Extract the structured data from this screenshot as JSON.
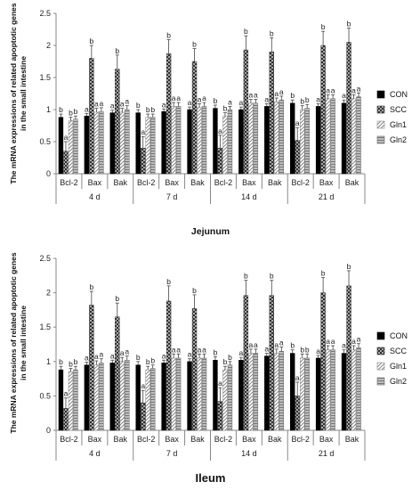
{
  "chart_data": [
    {
      "type": "bar",
      "xlabel": "Jejunum",
      "ylabel": "The mRNA expressions of related apoptotic genes in the small intestine",
      "ylim": [
        0,
        2.5
      ],
      "yticks": [
        "0",
        "0.5",
        "1",
        "1.5",
        "2",
        "2.5"
      ],
      "days": [
        "4 d",
        "7 d",
        "14 d",
        "21 d"
      ],
      "genes": [
        "Bcl-2",
        "Bax",
        "Bak"
      ],
      "series": [
        {
          "name": "CON",
          "values": [
            0.88,
            0.9,
            0.95,
            0.95,
            0.97,
            1.0,
            1.02,
            1.0,
            1.05,
            1.1,
            1.05,
            1.1
          ]
        },
        {
          "name": "SCC",
          "values": [
            0.35,
            1.8,
            1.63,
            0.4,
            1.87,
            1.75,
            0.4,
            1.93,
            1.9,
            0.52,
            2.0,
            2.05
          ]
        },
        {
          "name": "Gln1",
          "values": [
            0.83,
            0.96,
            0.96,
            0.88,
            1.05,
            1.03,
            0.9,
            1.1,
            1.12,
            1.0,
            1.17,
            1.17
          ]
        },
        {
          "name": "Gln2",
          "values": [
            0.85,
            0.97,
            1.0,
            0.88,
            1.05,
            1.05,
            1.0,
            1.1,
            1.15,
            1.02,
            1.17,
            1.2
          ]
        }
      ],
      "errors": [
        [
          0.05,
          0.04,
          0.04,
          0.05,
          0.04,
          0.04,
          0.05,
          0.04,
          0.04,
          0.05,
          0.04,
          0.05
        ],
        [
          0.15,
          0.2,
          0.22,
          0.18,
          0.22,
          0.2,
          0.2,
          0.22,
          0.22,
          0.2,
          0.22,
          0.22
        ],
        [
          0.05,
          0.06,
          0.06,
          0.05,
          0.06,
          0.06,
          0.05,
          0.06,
          0.06,
          0.06,
          0.06,
          0.06
        ],
        [
          0.05,
          0.06,
          0.06,
          0.05,
          0.06,
          0.06,
          0.05,
          0.06,
          0.06,
          0.06,
          0.06,
          0.06
        ]
      ],
      "letters": [
        [
          "b",
          "a",
          "a",
          "b",
          "a",
          "a",
          "b",
          "a",
          "a",
          "b",
          "a",
          "a"
        ],
        [
          "a",
          "b",
          "b",
          "a",
          "b",
          "b",
          "a",
          "b",
          "b",
          "a",
          "b",
          "b"
        ],
        [
          "b",
          "a",
          "a",
          "b",
          "a",
          "a",
          "b",
          "a",
          "a",
          "b",
          "a",
          "a"
        ],
        [
          "b",
          "a",
          "a",
          "b",
          "a",
          "a",
          "a",
          "a",
          "a",
          "b",
          "a",
          "a"
        ]
      ],
      "legend": [
        "CON",
        "SCC",
        "Gln1",
        "Gln2"
      ],
      "grid": false,
      "legend_position": "right"
    },
    {
      "type": "bar",
      "xlabel": "Ileum",
      "ylabel": "The mRNA expressions of related apoptotic genes in the small intestine",
      "ylim": [
        0,
        2.5
      ],
      "yticks": [
        "0",
        "0.5",
        "1",
        "1.5",
        "2",
        "2.5"
      ],
      "days": [
        "4 d",
        "7 d",
        "14 d",
        "21 d"
      ],
      "genes": [
        "Bcl-2",
        "Bax",
        "Bak"
      ],
      "series": [
        {
          "name": "CON",
          "values": [
            0.88,
            0.95,
            0.98,
            0.95,
            0.98,
            1.0,
            1.02,
            1.02,
            1.08,
            1.12,
            1.05,
            1.12
          ]
        },
        {
          "name": "SCC",
          "values": [
            0.32,
            1.82,
            1.65,
            0.4,
            1.88,
            1.77,
            0.42,
            1.96,
            1.96,
            0.5,
            2.0,
            2.1
          ]
        },
        {
          "name": "Gln1",
          "values": [
            0.85,
            0.95,
            1.0,
            0.88,
            1.05,
            1.05,
            0.88,
            1.12,
            1.12,
            1.05,
            1.17,
            1.17
          ]
        },
        {
          "name": "Gln2",
          "values": [
            0.88,
            0.98,
            1.02,
            0.9,
            1.05,
            1.05,
            0.95,
            1.12,
            1.15,
            1.05,
            1.17,
            1.2
          ]
        }
      ],
      "errors": [
        [
          0.05,
          0.04,
          0.04,
          0.05,
          0.04,
          0.04,
          0.05,
          0.04,
          0.04,
          0.05,
          0.04,
          0.05
        ],
        [
          0.15,
          0.2,
          0.2,
          0.18,
          0.22,
          0.2,
          0.2,
          0.22,
          0.22,
          0.2,
          0.22,
          0.22
        ],
        [
          0.05,
          0.06,
          0.06,
          0.05,
          0.06,
          0.06,
          0.05,
          0.06,
          0.06,
          0.06,
          0.06,
          0.06
        ],
        [
          0.05,
          0.06,
          0.06,
          0.05,
          0.06,
          0.06,
          0.05,
          0.06,
          0.06,
          0.06,
          0.06,
          0.06
        ]
      ],
      "letters": [
        [
          "b",
          "a",
          "a",
          "b",
          "a",
          "a",
          "b",
          "a",
          "a",
          "b",
          "a",
          "a"
        ],
        [
          "a",
          "b",
          "b",
          "a",
          "b",
          "b",
          "a",
          "b",
          "b",
          "a",
          "b",
          "b"
        ],
        [
          "b",
          "a",
          "a",
          "b",
          "a",
          "a",
          "b",
          "a",
          "a",
          "b",
          "a",
          "a"
        ],
        [
          "b",
          "a",
          "a",
          "b",
          "a",
          "a",
          "b",
          "a",
          "a",
          "b",
          "a",
          "a"
        ]
      ],
      "legend": [
        "CON",
        "SCC",
        "Gln1",
        "Gln2"
      ],
      "grid": false,
      "legend_position": "right"
    }
  ],
  "colors": {
    "CON": "#000000",
    "SCC": "#4a4a4a",
    "Gln1": "#ffffff",
    "Gln2": "#8c8c8c",
    "axis": "#888888",
    "text": "#222222"
  }
}
